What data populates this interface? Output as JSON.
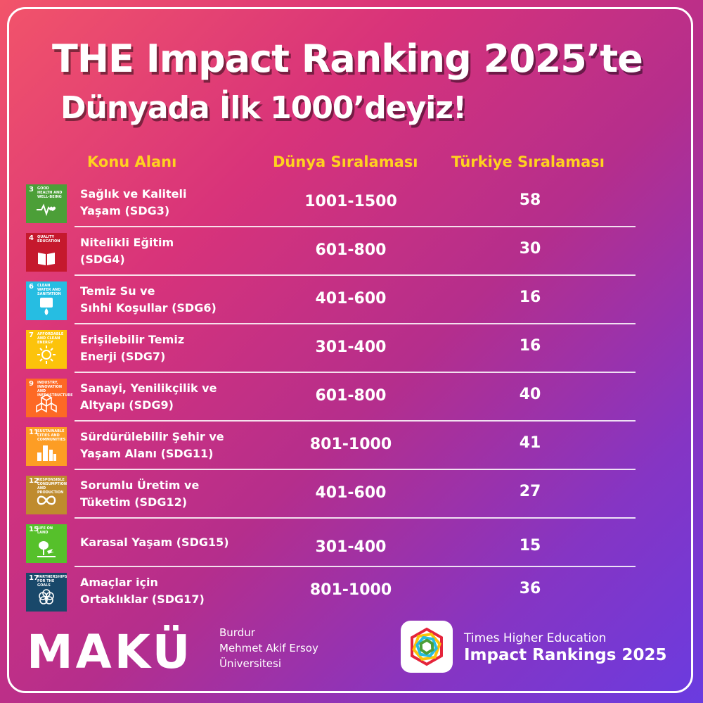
{
  "title": {
    "line1": "THE Impact Ranking 2025’te",
    "line2": "Dünyada İlk 1000’deyiz!"
  },
  "headers": {
    "topic": "Konu Alanı",
    "world": "Dünya Sıralaması",
    "turkey": "Türkiye Sıralaması"
  },
  "rows": [
    {
      "sdg_number": "3",
      "sdg_label": "GOOD HEALTH AND WELL-BEING",
      "color": "#4c9f38",
      "icon": "heartbeat-icon",
      "topic_line1": "Sağlık ve Kaliteli",
      "topic_line2": "Yaşam (SDG3)",
      "world": "1001-1500",
      "turkey": "58"
    },
    {
      "sdg_number": "4",
      "sdg_label": "QUALITY EDUCATION",
      "color": "#c5192d",
      "icon": "book-icon",
      "topic_line1": "Nitelikli Eğitim",
      "topic_line2": "(SDG4)",
      "world": "601-800",
      "turkey": "30"
    },
    {
      "sdg_number": "6",
      "sdg_label": "CLEAN WATER AND SANITATION",
      "color": "#26bde2",
      "icon": "water-drop-icon",
      "topic_line1": "Temiz Su ve",
      "topic_line2": "Sıhhi Koşullar (SDG6)",
      "world": "401-600",
      "turkey": "16"
    },
    {
      "sdg_number": "7",
      "sdg_label": "AFFORDABLE AND CLEAN ENERGY",
      "color": "#fcc30b",
      "icon": "sun-icon",
      "topic_line1": "Erişilebilir Temiz",
      "topic_line2": "Enerji (SDG7)",
      "world": "301-400",
      "turkey": "16"
    },
    {
      "sdg_number": "9",
      "sdg_label": "INDUSTRY, INNOVATION AND INFRASTRUCTURE",
      "color": "#fd6925",
      "icon": "cubes-icon",
      "topic_line1": "Sanayi, Yenilikçilik ve",
      "topic_line2": "Altyapı (SDG9)",
      "world": "601-800",
      "turkey": "40"
    },
    {
      "sdg_number": "11",
      "sdg_label": "SUSTAINABLE CITIES AND COMMUNITIES",
      "color": "#fd9d24",
      "icon": "city-icon",
      "topic_line1": "Sürdürülebilir Şehir ve",
      "topic_line2": "Yaşam Alanı (SDG11)",
      "world": "801-1000",
      "turkey": "41"
    },
    {
      "sdg_number": "12",
      "sdg_label": "RESPONSIBLE CONSUMPTION AND PRODUCTION",
      "color": "#bf8b2e",
      "icon": "infinity-icon",
      "topic_line1": "Sorumlu Üretim ve",
      "topic_line2": "Tüketim (SDG12)",
      "world": "401-600",
      "turkey": "27"
    },
    {
      "sdg_number": "15",
      "sdg_label": "LIFE ON LAND",
      "color": "#56c02b",
      "icon": "tree-icon",
      "topic_line1": "Karasal Yaşam (SDG15)",
      "topic_line2": "",
      "world": "301-400",
      "turkey": "15"
    },
    {
      "sdg_number": "17",
      "sdg_label": "PARTNERSHIPS FOR THE GOALS",
      "color": "#19486a",
      "icon": "flower-rings-icon",
      "topic_line1": "Amaçlar için",
      "topic_line2": "Ortaklıklar (SDG17)",
      "world": "801-1000",
      "turkey": "36"
    }
  ],
  "footer": {
    "logo": "MAKÜ",
    "uni_line1": "Burdur",
    "uni_line2": "Mehmet Akif Ersoy",
    "uni_line3": "Üniversitesi",
    "the_line1": "Times Higher Education",
    "the_line2": "Impact Rankings 2025"
  }
}
